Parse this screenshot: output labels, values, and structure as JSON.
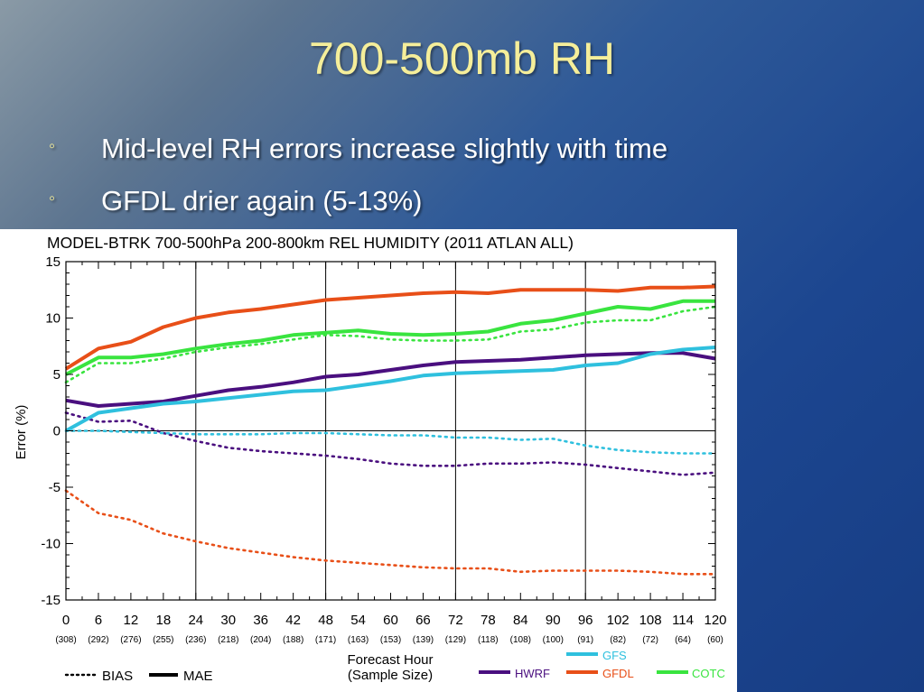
{
  "slide": {
    "title": "700-500mb RH",
    "bullets": [
      {
        "marker": "◦",
        "text": "Mid-level RH errors increase slightly with time"
      },
      {
        "marker": "◦",
        "text": "GFDL drier again (5-13%)"
      }
    ]
  },
  "chart_data": {
    "type": "line",
    "title": "MODEL-BTRK 700-500hPa 200-800km REL HUMIDITY (2011 ATLAN ALL)",
    "xlabel": "Forecast Hour",
    "xlabel_sub": "(Sample Size)",
    "ylabel": "Error (%)",
    "x": [
      0,
      6,
      12,
      18,
      24,
      30,
      36,
      42,
      48,
      54,
      60,
      66,
      72,
      78,
      84,
      90,
      96,
      102,
      108,
      114,
      120
    ],
    "sample_sizes": [
      "(308)",
      "(292)",
      "(276)",
      "(255)",
      "(236)",
      "(218)",
      "(204)",
      "(188)",
      "(171)",
      "(163)",
      "(153)",
      "(139)",
      "(129)",
      "(118)",
      "(108)",
      "(100)",
      "(91)",
      "(82)",
      "(72)",
      "(64)",
      "(60)"
    ],
    "ylim": [
      -15,
      15
    ],
    "yticks": [
      15,
      10,
      5,
      0,
      -5,
      -10,
      -15
    ],
    "vgrid": [
      24,
      48,
      72,
      96
    ],
    "zero_line": true,
    "legend_style": [
      {
        "label": "BIAS",
        "style": "dotted"
      },
      {
        "label": "MAE",
        "style": "solid"
      }
    ],
    "series": [
      {
        "name": "HWRF",
        "color": "#4a0f7f",
        "mae": [
          2.7,
          2.2,
          2.4,
          2.6,
          3.1,
          3.6,
          3.9,
          4.3,
          4.8,
          5.0,
          5.4,
          5.8,
          6.1,
          6.2,
          6.3,
          6.5,
          6.7,
          6.8,
          6.9,
          6.9,
          6.4
        ],
        "bias": [
          1.6,
          0.8,
          0.9,
          -0.2,
          -0.9,
          -1.5,
          -1.8,
          -2.0,
          -2.2,
          -2.5,
          -2.9,
          -3.1,
          -3.1,
          -2.9,
          -2.9,
          -2.8,
          -3.0,
          -3.3,
          -3.6,
          -3.9,
          -3.7
        ]
      },
      {
        "name": "GFDL",
        "color": "#e84f18",
        "mae": [
          5.5,
          7.3,
          7.9,
          9.2,
          10.0,
          10.5,
          10.8,
          11.2,
          11.6,
          11.8,
          12.0,
          12.2,
          12.3,
          12.2,
          12.5,
          12.5,
          12.5,
          12.4,
          12.7,
          12.7,
          12.8
        ],
        "bias": [
          -5.3,
          -7.3,
          -7.9,
          -9.1,
          -9.8,
          -10.4,
          -10.8,
          -11.2,
          -11.5,
          -11.7,
          -11.9,
          -12.1,
          -12.2,
          -12.2,
          -12.5,
          -12.4,
          -12.4,
          -12.4,
          -12.5,
          -12.7,
          -12.7
        ]
      },
      {
        "name": "GFS",
        "color": "#2fc0de",
        "mae": [
          0.0,
          1.6,
          2.0,
          2.4,
          2.6,
          2.9,
          3.2,
          3.5,
          3.6,
          4.0,
          4.4,
          4.9,
          5.1,
          5.2,
          5.3,
          5.4,
          5.8,
          6.0,
          6.8,
          7.2,
          7.4
        ],
        "bias": [
          0.0,
          0.0,
          -0.1,
          -0.2,
          -0.3,
          -0.3,
          -0.3,
          -0.2,
          -0.2,
          -0.3,
          -0.4,
          -0.4,
          -0.6,
          -0.6,
          -0.8,
          -0.7,
          -1.3,
          -1.7,
          -1.9,
          -2.0,
          -2.0
        ]
      },
      {
        "name": "COTC",
        "color": "#39e43f",
        "mae": [
          5.0,
          6.5,
          6.5,
          6.8,
          7.3,
          7.7,
          8.0,
          8.5,
          8.7,
          8.9,
          8.6,
          8.5,
          8.6,
          8.8,
          9.5,
          9.8,
          10.4,
          11.0,
          10.8,
          11.5,
          11.5
        ],
        "bias": [
          4.3,
          6.0,
          6.0,
          6.4,
          7.0,
          7.4,
          7.7,
          8.1,
          8.5,
          8.4,
          8.1,
          8.0,
          8.0,
          8.1,
          8.8,
          9.0,
          9.6,
          9.8,
          9.8,
          10.6,
          11.0
        ]
      }
    ]
  }
}
